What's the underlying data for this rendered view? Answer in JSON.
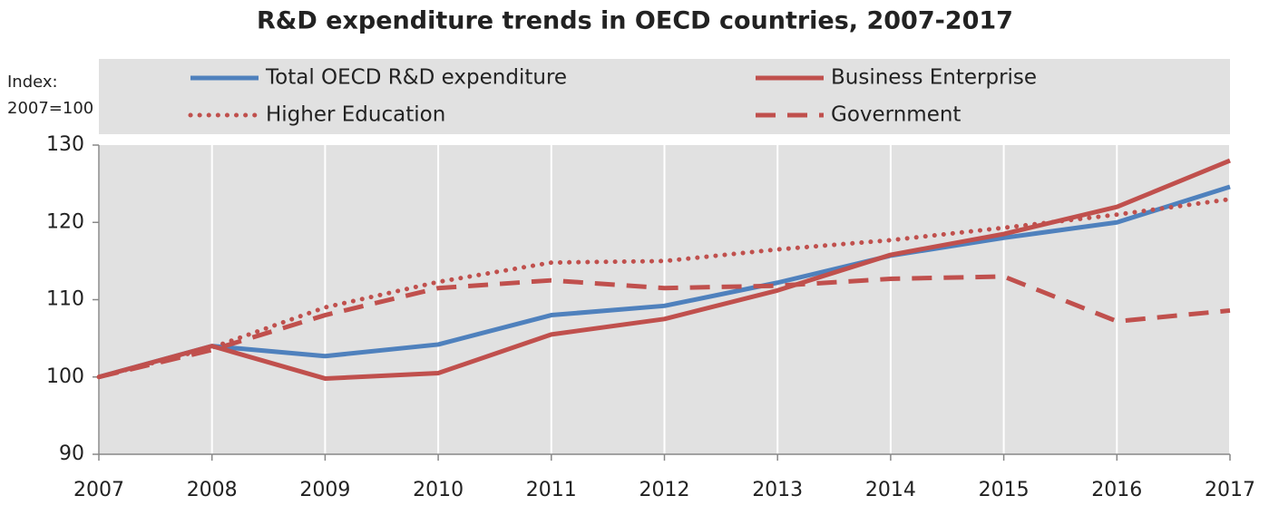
{
  "chart_data": {
    "type": "line",
    "title": "R&D expenditure trends in OECD countries, 2007-2017",
    "y_label": "Index: 2007=100",
    "x": [
      2007,
      2008,
      2009,
      2010,
      2011,
      2012,
      2013,
      2014,
      2015,
      2016,
      2017
    ],
    "xlim": [
      2007,
      2017
    ],
    "xticks": [
      2007,
      2008,
      2009,
      2010,
      2011,
      2012,
      2013,
      2014,
      2015,
      2016,
      2017
    ],
    "ylim": [
      90,
      130
    ],
    "yticks": [
      90,
      100,
      110,
      120,
      130
    ],
    "grid": true,
    "legend": "top",
    "series": [
      {
        "name": "Total OECD R&D expenditure",
        "color": "#4f81bd",
        "style": "solid",
        "values": [
          100,
          104,
          102.7,
          104.2,
          108,
          109.2,
          112.2,
          115.7,
          118,
          120,
          124.6
        ]
      },
      {
        "name": "Business Enterprise",
        "color": "#c0504d",
        "style": "solid",
        "values": [
          100,
          104,
          99.8,
          100.5,
          105.5,
          107.5,
          111.2,
          115.8,
          118.5,
          122,
          128
        ]
      },
      {
        "name": "Higher Education",
        "color": "#c0504d",
        "style": "dotted",
        "values": [
          100,
          103.8,
          109,
          112.3,
          114.8,
          115,
          116.5,
          117.7,
          119.3,
          121,
          123
        ]
      },
      {
        "name": "Government",
        "color": "#c0504d",
        "style": "dashed",
        "values": [
          100,
          103.5,
          108,
          111.5,
          112.5,
          111.5,
          111.8,
          112.7,
          113,
          107.2,
          108.6
        ]
      }
    ]
  }
}
